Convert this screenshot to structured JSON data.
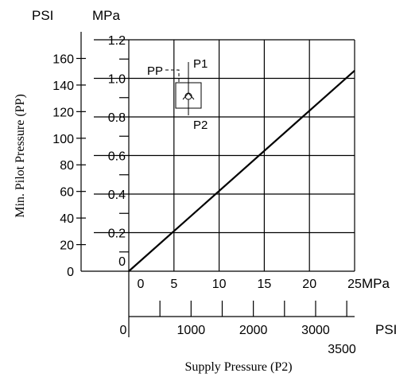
{
  "chart_data": {
    "type": "line",
    "ylabel": "Min. Pilot Pressure (PP)",
    "xlabel": "Supply Pressure (P2)",
    "y_units": {
      "left": "PSI",
      "right": "MPa"
    },
    "x_units": {
      "top": "MPa",
      "bottom": "PSI"
    },
    "y_psi_ticks": [
      "0",
      "20",
      "40",
      "60",
      "80",
      "100",
      "120",
      "140",
      "160"
    ],
    "y_mpa_ticks": [
      "0",
      "0.2",
      "0.4",
      "0.6",
      "0.8",
      "1.0",
      "1.2"
    ],
    "x_mpa_ticks": [
      "0",
      "5",
      "10",
      "15",
      "20",
      "25"
    ],
    "x_psi_ticks": [
      "0",
      "1000",
      "2000",
      "3000",
      "3500"
    ],
    "xlim_mpa": [
      0,
      25
    ],
    "ylim_mpa": [
      0,
      1.2
    ],
    "grid": true,
    "series": [
      {
        "x": [
          0,
          25
        ],
        "y": [
          0,
          1.04
        ]
      }
    ],
    "symbol": {
      "labels": {
        "pp": "PP",
        "p1": "P1",
        "p2": "P2"
      }
    }
  }
}
